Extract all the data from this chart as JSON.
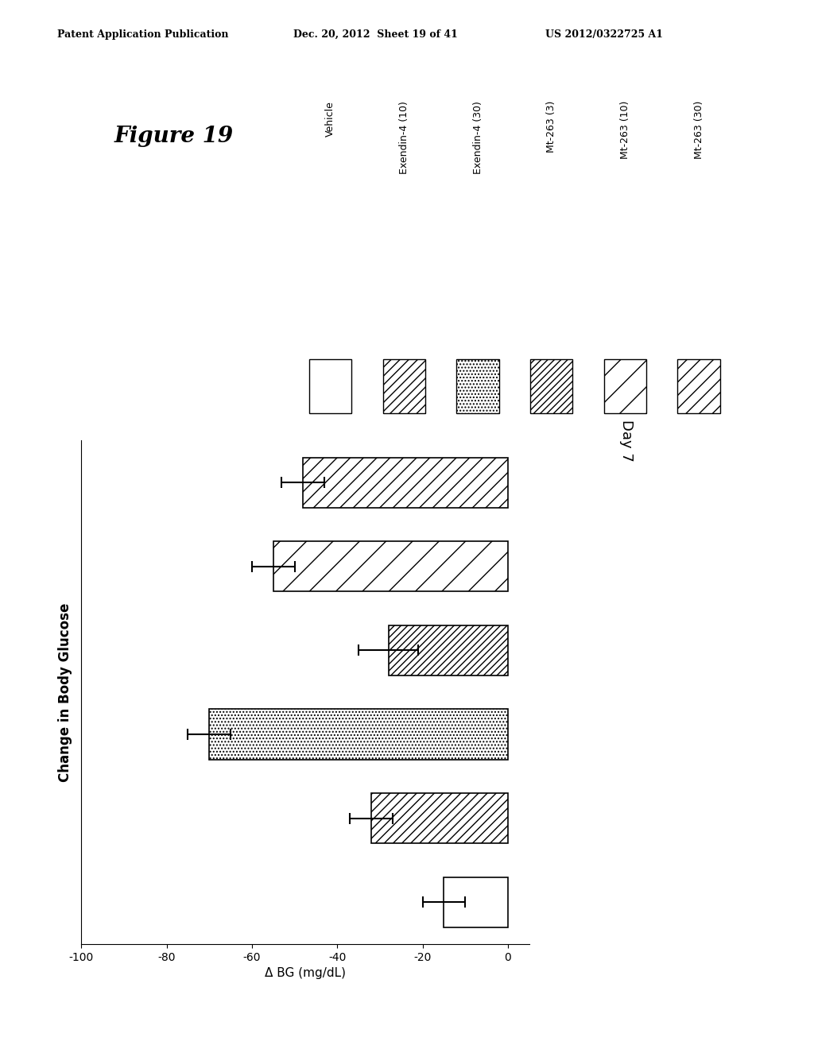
{
  "categories": [
    "Vehicle",
    "Exendin-4 (10)",
    "Exendin-4 (30)",
    "Mt-263 (3)",
    "Mt-263 (10)",
    "Mt-263 (30)"
  ],
  "values": [
    -15,
    -32,
    -70,
    -28,
    -55,
    -48
  ],
  "errors": [
    5,
    5,
    5,
    7,
    5,
    5
  ],
  "bar_hatches": [
    "",
    "///",
    "....",
    "////",
    "/",
    "//"
  ],
  "title": "Figure 19",
  "xlabel": "Δ BG (mg/dL)",
  "ylabel": "Change in Body Glucose",
  "day_label": "Day 7",
  "xlim": [
    -100,
    5
  ],
  "xticks": [
    0,
    -20,
    -40,
    -60,
    -80,
    -100
  ],
  "xticklabels": [
    "0",
    "-20",
    "-40",
    "-60",
    "-80",
    "-100"
  ],
  "legend_labels": [
    "Vehicle",
    "Exendin-4 (10)",
    "Exendin-4 (30)",
    "Mt-263 (3)",
    "Mt-263 (10)",
    "Mt-263 (30)"
  ],
  "legend_hatches": [
    "",
    "///",
    "....",
    "////",
    "/",
    "//"
  ],
  "header_left": "Patent Application Publication",
  "header_mid": "Dec. 20, 2012  Sheet 19 of 41",
  "header_right": "US 2012/0322725 A1"
}
